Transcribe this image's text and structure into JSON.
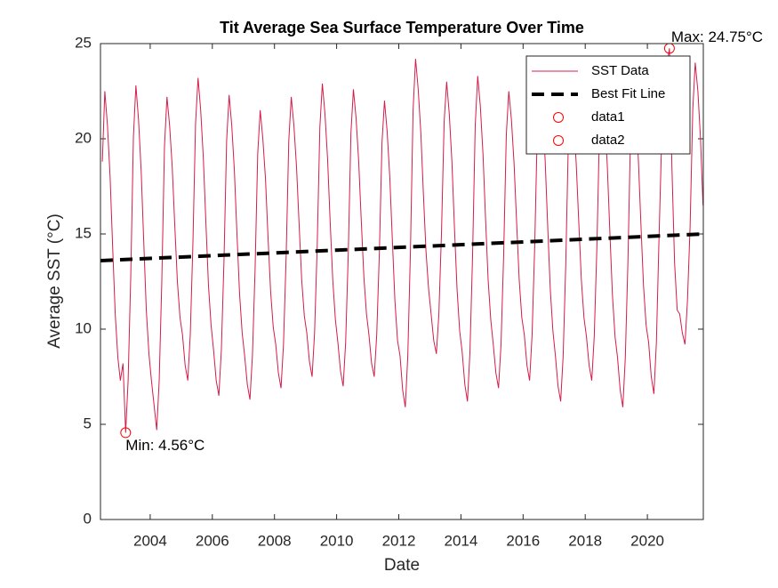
{
  "chart_data": {
    "type": "line",
    "title": "Tit Average Sea Surface Temperature Over Time",
    "x_label": "Date",
    "y_label": "Average SST (°C)",
    "xlim": [
      2002.4,
      2021.8
    ],
    "ylim": [
      0,
      25
    ],
    "xticks": [
      2004,
      2006,
      2008,
      2010,
      2012,
      2014,
      2016,
      2018,
      2020
    ],
    "yticks": [
      0,
      5,
      10,
      15,
      20,
      25
    ],
    "grid": false,
    "legend": "top-right",
    "series": [
      {
        "name": "SST Data",
        "color": "#d41c4a",
        "line_style": "solid",
        "marker": "none",
        "x": [
          2002.46,
          2002.54,
          2002.625,
          2002.71,
          2002.79,
          2002.875,
          2002.96,
          2003.04,
          2003.125,
          2003.21,
          2003.29,
          2003.375,
          2003.46,
          2003.54,
          2003.625,
          2003.71,
          2003.79,
          2003.875,
          2003.96,
          2004.04,
          2004.125,
          2004.21,
          2004.29,
          2004.375,
          2004.46,
          2004.54,
          2004.625,
          2004.71,
          2004.79,
          2004.875,
          2004.96,
          2005.04,
          2005.125,
          2005.21,
          2005.29,
          2005.375,
          2005.46,
          2005.54,
          2005.625,
          2005.71,
          2005.79,
          2005.875,
          2005.96,
          2006.04,
          2006.125,
          2006.21,
          2006.29,
          2006.375,
          2006.46,
          2006.54,
          2006.625,
          2006.71,
          2006.79,
          2006.875,
          2006.96,
          2007.04,
          2007.125,
          2007.21,
          2007.29,
          2007.375,
          2007.46,
          2007.54,
          2007.625,
          2007.71,
          2007.79,
          2007.875,
          2007.96,
          2008.04,
          2008.125,
          2008.21,
          2008.29,
          2008.375,
          2008.46,
          2008.54,
          2008.625,
          2008.71,
          2008.79,
          2008.875,
          2008.96,
          2009.04,
          2009.125,
          2009.21,
          2009.29,
          2009.375,
          2009.46,
          2009.54,
          2009.625,
          2009.71,
          2009.79,
          2009.875,
          2009.96,
          2010.04,
          2010.125,
          2010.21,
          2010.29,
          2010.375,
          2010.46,
          2010.54,
          2010.625,
          2010.71,
          2010.79,
          2010.875,
          2010.96,
          2011.04,
          2011.125,
          2011.21,
          2011.29,
          2011.375,
          2011.46,
          2011.54,
          2011.625,
          2011.71,
          2011.79,
          2011.875,
          2011.96,
          2012.04,
          2012.125,
          2012.21,
          2012.29,
          2012.375,
          2012.46,
          2012.54,
          2012.625,
          2012.71,
          2012.79,
          2012.875,
          2012.96,
          2013.04,
          2013.125,
          2013.21,
          2013.29,
          2013.375,
          2013.46,
          2013.54,
          2013.625,
          2013.71,
          2013.79,
          2013.875,
          2013.96,
          2014.04,
          2014.125,
          2014.21,
          2014.29,
          2014.375,
          2014.46,
          2014.54,
          2014.625,
          2014.71,
          2014.79,
          2014.875,
          2014.96,
          2015.04,
          2015.125,
          2015.21,
          2015.29,
          2015.375,
          2015.46,
          2015.54,
          2015.625,
          2015.71,
          2015.79,
          2015.875,
          2015.96,
          2016.04,
          2016.125,
          2016.21,
          2016.29,
          2016.375,
          2016.46,
          2016.54,
          2016.625,
          2016.71,
          2016.79,
          2016.875,
          2016.96,
          2017.04,
          2017.125,
          2017.21,
          2017.29,
          2017.375,
          2017.46,
          2017.54,
          2017.625,
          2017.71,
          2017.79,
          2017.875,
          2017.96,
          2018.04,
          2018.125,
          2018.21,
          2018.29,
          2018.375,
          2018.46,
          2018.54,
          2018.625,
          2018.71,
          2018.79,
          2018.875,
          2018.96,
          2019.04,
          2019.125,
          2019.21,
          2019.29,
          2019.375,
          2019.46,
          2019.54,
          2019.625,
          2019.71,
          2019.79,
          2019.875,
          2019.96,
          2020.04,
          2020.125,
          2020.21,
          2020.29,
          2020.375,
          2020.46,
          2020.54,
          2020.625,
          2020.71,
          2020.79,
          2020.875,
          2020.96,
          2021.04,
          2021.125,
          2021.21,
          2021.29,
          2021.375,
          2021.46,
          2021.54,
          2021.625,
          2021.71,
          2021.79
        ],
        "values": [
          18.8,
          22.5,
          20.7,
          18.0,
          14.4,
          10.8,
          8.5,
          7.3,
          8.2,
          4.56,
          7.3,
          12.8,
          20.1,
          22.8,
          21.0,
          18.3,
          14.7,
          11.0,
          8.7,
          7.3,
          6.0,
          4.7,
          7.3,
          12.6,
          19.6,
          22.2,
          20.7,
          18.5,
          15.5,
          12.5,
          10.6,
          9.7,
          8.1,
          7.3,
          9.7,
          14.5,
          20.8,
          23.2,
          21.5,
          19.0,
          15.7,
          12.3,
          10.2,
          8.9,
          7.3,
          6.5,
          8.9,
          13.6,
          19.9,
          22.3,
          20.7,
          18.3,
          15.1,
          11.9,
          9.8,
          8.6,
          7.1,
          6.3,
          8.6,
          13.1,
          19.2,
          21.5,
          20.0,
          17.9,
          14.9,
          12.0,
          10.1,
          9.2,
          7.7,
          6.9,
          9.2,
          13.8,
          19.9,
          22.2,
          20.7,
          18.5,
          15.6,
          12.6,
          10.7,
          9.8,
          8.3,
          7.5,
          9.8,
          14.4,
          20.6,
          22.9,
          21.3,
          18.9,
          15.7,
          12.6,
          10.5,
          9.3,
          7.8,
          7.0,
          9.3,
          14.0,
          20.3,
          22.6,
          21.1,
          18.8,
          15.8,
          12.8,
          10.8,
          9.7,
          8.2,
          7.5,
          9.7,
          14.0,
          19.8,
          22.0,
          20.4,
          18.0,
          14.8,
          11.5,
          9.4,
          8.6,
          6.8,
          5.9,
          8.6,
          14.1,
          21.5,
          24.2,
          22.6,
          20.3,
          17.2,
          14.1,
          12.1,
          10.8,
          9.4,
          8.7,
          10.8,
          15.1,
          20.9,
          23.0,
          21.3,
          18.8,
          15.4,
          12.1,
          9.9,
          8.8,
          7.1,
          6.2,
          8.8,
          13.9,
          20.7,
          23.3,
          21.7,
          19.2,
          15.9,
          12.6,
          10.5,
          9.2,
          7.7,
          6.9,
          9.2,
          13.9,
          20.2,
          22.5,
          21.0,
          18.7,
          15.7,
          12.6,
          10.6,
          9.7,
          8.1,
          7.3,
          9.7,
          14.4,
          20.7,
          23.1,
          21.4,
          18.9,
          15.5,
          12.1,
          9.9,
          8.6,
          7.0,
          6.2,
          8.6,
          13.5,
          20.1,
          22.5,
          21.0,
          18.7,
          15.7,
          12.6,
          10.6,
          9.6,
          8.1,
          7.3,
          9.6,
          14.3,
          20.5,
          22.8,
          21.1,
          18.6,
          15.2,
          11.8,
          9.6,
          8.5,
          6.8,
          5.9,
          8.5,
          13.6,
          20.4,
          23.0,
          21.4,
          18.9,
          15.6,
          12.3,
          10.2,
          9.3,
          7.5,
          6.6,
          9.3,
          14.8,
          20.0,
          22.8,
          23.8,
          24.75,
          18.5,
          13.5,
          11.0,
          10.8,
          9.8,
          9.2,
          11.5,
          15.4,
          21.5,
          24.0,
          22.5,
          20.0,
          16.5
        ]
      },
      {
        "name": "Best Fit Line",
        "color": "#000000",
        "line_style": "dashed",
        "marker": "none",
        "x": [
          2002.4,
          2021.8
        ],
        "values": [
          13.6,
          15.0
        ]
      },
      {
        "name": "data1",
        "color": "#ff0000",
        "line_style": "none",
        "marker": "circle",
        "x": [
          2003.21
        ],
        "values": [
          4.56
        ],
        "label": "Min: 4.56°C",
        "label_position": "below"
      },
      {
        "name": "data2",
        "color": "#ff0000",
        "line_style": "none",
        "marker": "circle",
        "x": [
          2020.71
        ],
        "values": [
          24.75
        ],
        "label": "Max: 24.75°C",
        "label_position": "above"
      }
    ]
  }
}
